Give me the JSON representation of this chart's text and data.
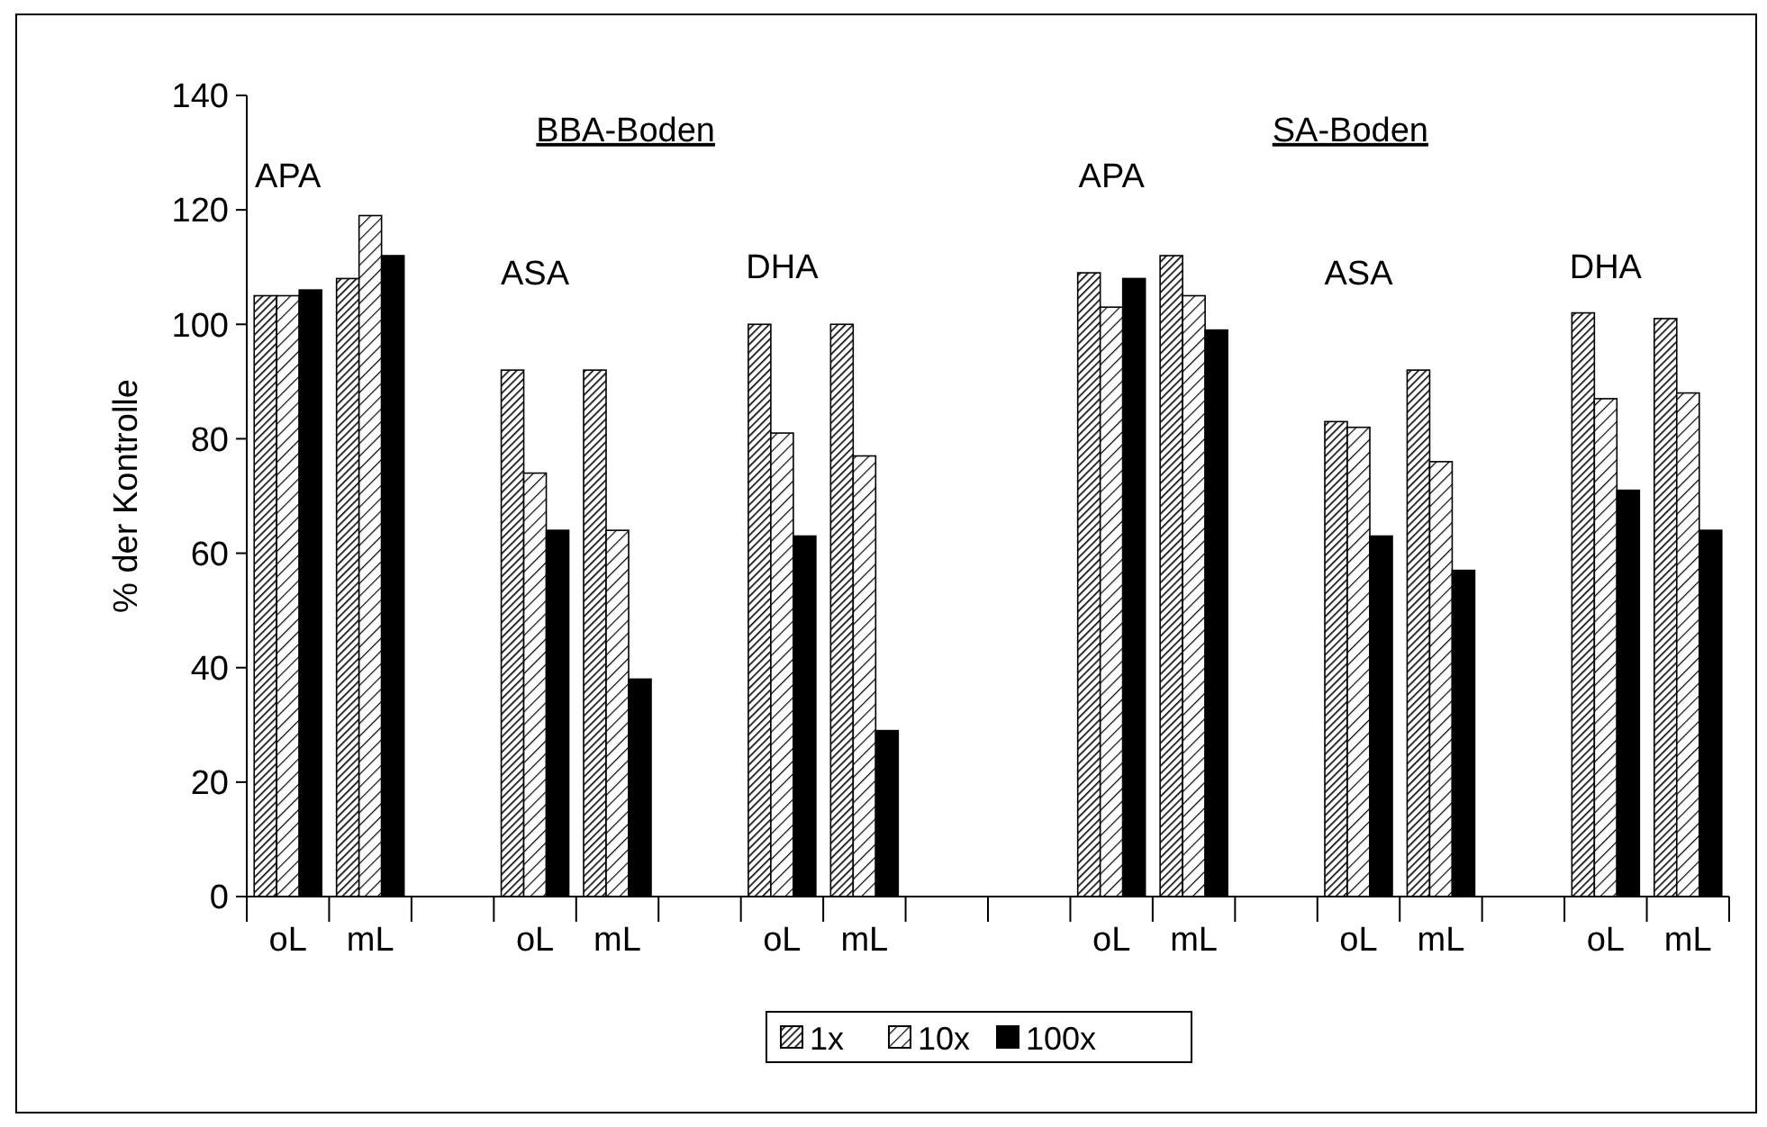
{
  "chart_data": {
    "type": "bar",
    "ylabel": "% der Kontrolle",
    "categories": [
      "oL",
      "mL",
      null,
      "oL",
      "mL",
      null,
      "oL",
      "mL",
      null,
      null,
      "oL",
      "mL",
      null,
      "oL",
      "mL",
      null,
      "oL",
      "mL"
    ],
    "series": [
      {
        "name": "1x",
        "color": "#000000",
        "values": [
          105,
          108,
          null,
          92,
          92,
          null,
          100,
          100,
          null,
          null,
          109,
          112,
          null,
          83,
          92,
          null,
          102,
          101
        ]
      },
      {
        "name": "10x",
        "color": "#000000",
        "values": [
          105,
          119,
          null,
          74,
          64,
          null,
          81,
          77,
          null,
          null,
          103,
          105,
          null,
          82,
          76,
          null,
          87,
          88
        ]
      },
      {
        "name": "100x",
        "color": "#000000",
        "values": [
          106,
          112,
          null,
          64,
          38,
          null,
          63,
          29,
          null,
          null,
          108,
          99,
          null,
          63,
          57,
          null,
          71,
          64
        ]
      }
    ],
    "ylim": [
      0,
      140
    ],
    "yticks": [
      0,
      20,
      40,
      60,
      80,
      100,
      120,
      140
    ],
    "grid": false,
    "legend": "bottom",
    "annotations": [
      "BBA-Boden",
      "APA",
      "ASA",
      "DHA",
      "SA-Boden",
      "APA",
      "ASA",
      "DHA"
    ]
  }
}
